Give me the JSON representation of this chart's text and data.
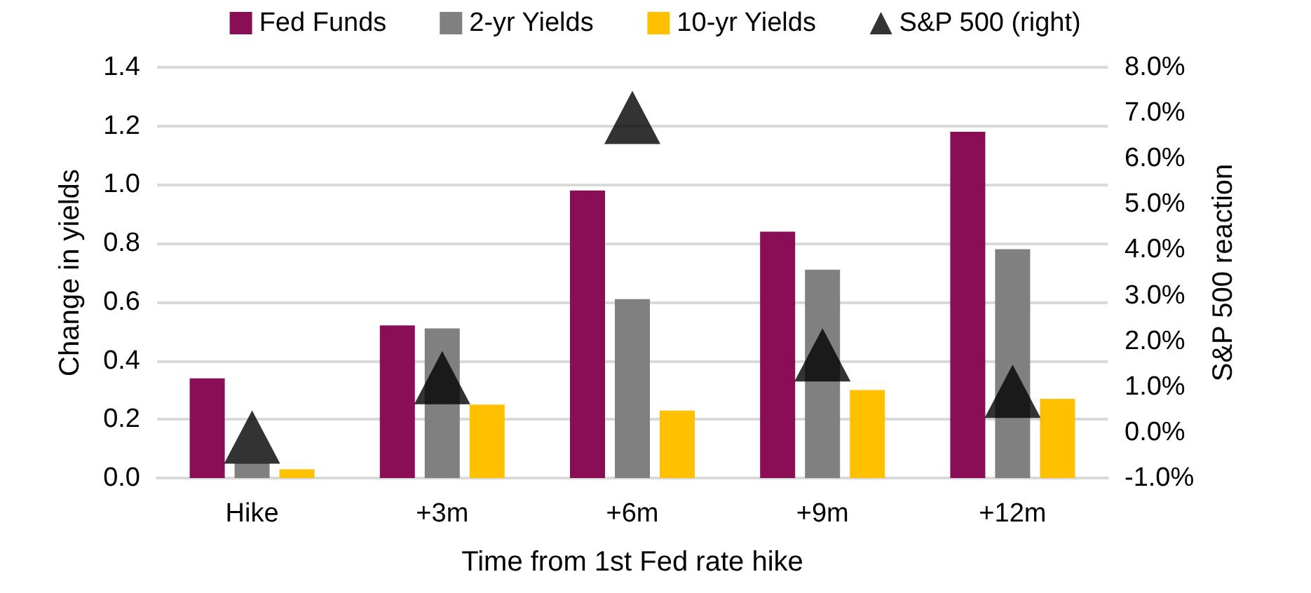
{
  "chart_data": {
    "type": "bar",
    "xlabel": "Time from 1st Fed rate hike",
    "ylabel": "Change in yields",
    "y2label": "S&P 500 reaction",
    "categories": [
      "Hike",
      "+3m",
      "+6m",
      "+9m",
      "+12m"
    ],
    "series": [
      {
        "name": "Fed Funds",
        "color": "#8a0e56",
        "values": [
          0.34,
          0.52,
          0.98,
          0.84,
          1.18
        ]
      },
      {
        "name": "2-yr Yields",
        "color": "#808080",
        "values": [
          0.05,
          0.51,
          0.61,
          0.71,
          0.78
        ]
      },
      {
        "name": "10-yr Yields",
        "color": "#ffc000",
        "values": [
          0.03,
          0.25,
          0.23,
          0.3,
          0.27
        ]
      },
      {
        "name": "S&P 500 (right)",
        "type": "scatter",
        "axis": "y2",
        "marker": "triangle",
        "color": "#000000",
        "values": [
          -0.1,
          1.2,
          6.9,
          1.7,
          0.9
        ]
      }
    ],
    "ylim": [
      0,
      1.4
    ],
    "yticks": [
      {
        "value": 0,
        "label": "0.0"
      },
      {
        "value": 0.2,
        "label": "0.2"
      },
      {
        "value": 0.4,
        "label": "0.4"
      },
      {
        "value": 0.6,
        "label": "0.6"
      },
      {
        "value": 0.8,
        "label": "0.8"
      },
      {
        "value": 1,
        "label": "1.0"
      },
      {
        "value": 1.2,
        "label": "1.2"
      },
      {
        "value": 1.4,
        "label": "1.4"
      }
    ],
    "y2lim": [
      -1,
      8
    ],
    "y2ticks": [
      {
        "value": -1,
        "label": "-1.0%"
      },
      {
        "value": 0,
        "label": "0.0%"
      },
      {
        "value": 1,
        "label": "1.0%"
      },
      {
        "value": 2,
        "label": "2.0%"
      },
      {
        "value": 3,
        "label": "3.0%"
      },
      {
        "value": 4,
        "label": "4.0%"
      },
      {
        "value": 5,
        "label": "5.0%"
      },
      {
        "value": 6,
        "label": "6.0%"
      },
      {
        "value": 7,
        "label": "7.0%"
      },
      {
        "value": 8,
        "label": "8.0%"
      }
    ],
    "grid": "y",
    "legend": "top"
  }
}
